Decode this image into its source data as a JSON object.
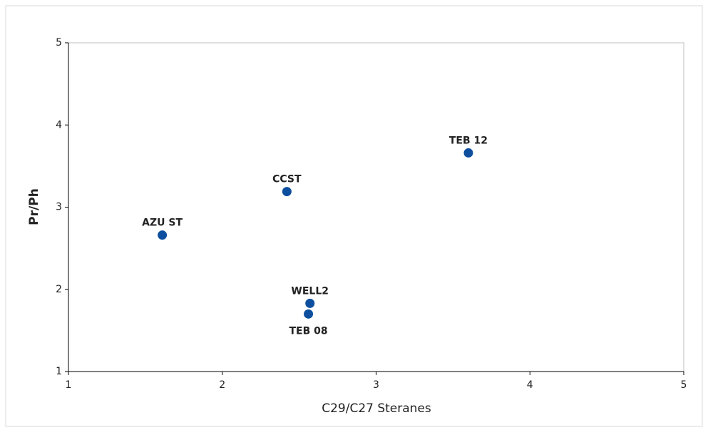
{
  "chart_data": {
    "type": "scatter",
    "x_label": "C29/C27 Steranes",
    "y_label": "Pr/Ph",
    "x": [
      1.61,
      2.42,
      3.6,
      2.57,
      2.56
    ],
    "values": [
      2.66,
      3.19,
      3.66,
      1.83,
      1.7
    ],
    "point_labels": [
      "AZU ST",
      "CCST",
      "TEB 12",
      "WELL2",
      "TEB 08"
    ],
    "color": "#0d4f9e",
    "xlim": [
      1,
      5
    ],
    "xticks": [
      1,
      2,
      3,
      4,
      5
    ],
    "ylim": [
      1,
      5
    ],
    "yticks": [
      1,
      2,
      3,
      4,
      5
    ],
    "grid": false
  }
}
